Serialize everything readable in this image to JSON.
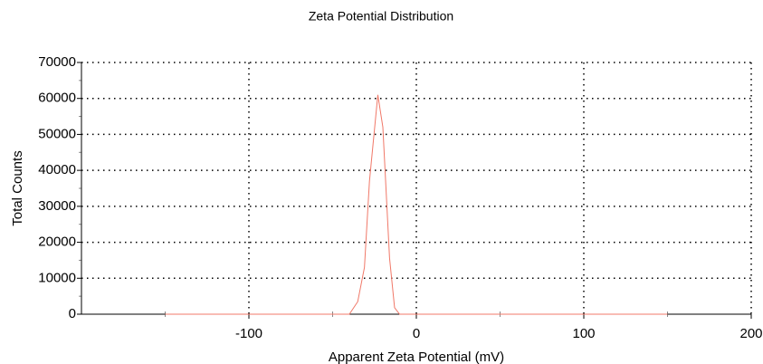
{
  "chart_data": {
    "type": "line",
    "title": "Zeta Potential Distribution",
    "x_label": "Apparent Zeta Potential (mV)",
    "y_label": "Total Counts",
    "x": [
      -150,
      -100,
      -50,
      -40,
      -35,
      -31,
      -28,
      -23,
      -20,
      -16,
      -13,
      -10,
      0,
      50,
      100,
      150
    ],
    "series": [
      {
        "color": "#f07868",
        "values": [
          0,
          0,
          0,
          0,
          3500,
          13000,
          37000,
          61000,
          52000,
          15600,
          1800,
          0,
          0,
          0,
          0,
          0
        ]
      }
    ],
    "xlim": [
      -200,
      200
    ],
    "xticks": [
      -100,
      0,
      100,
      200
    ],
    "x_minor_ticks": [
      -150,
      -50,
      50,
      150
    ],
    "ylim": [
      0,
      70000
    ],
    "yticks": [
      0,
      10000,
      20000,
      30000,
      40000,
      50000,
      60000,
      70000
    ],
    "y_minor_ticks": [
      5000,
      15000,
      25000,
      35000,
      45000,
      55000,
      65000
    ],
    "grid": true
  }
}
